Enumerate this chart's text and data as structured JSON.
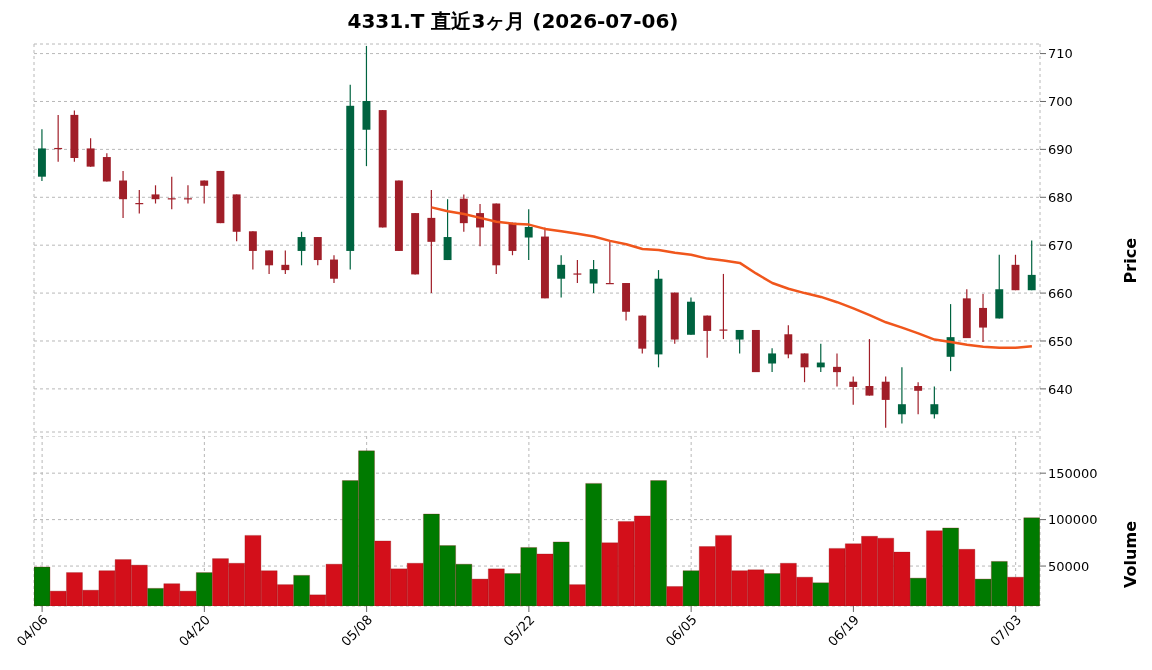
{
  "chart_data": [
    {
      "type": "candlestick",
      "title": "4331.T 直近3ヶ月 (2026-07-06)",
      "ylabel": "Price",
      "categories": [
        null,
        null,
        null,
        null,
        null,
        null,
        null,
        null,
        null,
        null,
        null,
        null,
        null,
        null,
        null,
        null,
        null,
        null,
        null,
        null,
        null,
        null,
        null,
        null,
        null,
        null,
        null,
        null,
        null,
        null,
        null,
        null,
        null,
        null,
        null,
        null,
        null,
        null,
        null,
        null,
        null,
        null,
        null,
        null,
        null,
        null,
        null,
        null,
        null,
        null,
        null,
        null,
        null,
        null,
        null,
        null,
        null,
        null,
        null,
        null,
        null,
        null
      ],
      "ohlc": [
        [
          684.3,
          694.2,
          683.4,
          690.2
        ],
        [
          690.3,
          697.2,
          687.4,
          690.1
        ],
        [
          697.2,
          698.1,
          687.4,
          688.2
        ],
        [
          690.2,
          692.3,
          686.4,
          686.4
        ],
        [
          688.4,
          689.2,
          683.3,
          683.3
        ],
        [
          683.5,
          685.5,
          675.7,
          679.6
        ],
        [
          678.8,
          681.5,
          676.6,
          678.6
        ],
        [
          680.6,
          682.5,
          678.7,
          679.6
        ],
        [
          679.8,
          684.3,
          677.5,
          679.6
        ],
        [
          679.8,
          682.5,
          678.7,
          679.6
        ],
        [
          683.5,
          683.5,
          678.7,
          682.4
        ],
        [
          685.5,
          685.5,
          674.6,
          674.6
        ],
        [
          680.6,
          680.6,
          670.8,
          672.8
        ],
        [
          672.9,
          672.9,
          664.9,
          668.8
        ],
        [
          668.9,
          668.9,
          664.0,
          665.8
        ],
        [
          665.9,
          668.9,
          664.0,
          664.8
        ],
        [
          668.8,
          672.8,
          665.8,
          671.7
        ],
        [
          671.7,
          671.7,
          665.8,
          666.9
        ],
        [
          667.0,
          667.9,
          662.1,
          663.0
        ],
        [
          668.8,
          703.5,
          664.9,
          699.1
        ],
        [
          694.1,
          711.6,
          686.5,
          700.1
        ],
        [
          698.2,
          698.2,
          673.7,
          673.7
        ],
        [
          683.5,
          683.5,
          668.8,
          668.8
        ],
        [
          676.7,
          676.7,
          663.9,
          663.9
        ],
        [
          675.7,
          681.5,
          660.0,
          670.7
        ],
        [
          666.9,
          679.6,
          666.9,
          671.7
        ],
        [
          679.7,
          680.6,
          672.8,
          674.6
        ],
        [
          676.7,
          678.6,
          669.8,
          673.7
        ],
        [
          678.7,
          678.7,
          664.0,
          665.8
        ],
        [
          674.7,
          674.7,
          667.9,
          668.8
        ],
        [
          671.6,
          677.5,
          666.9,
          673.8
        ],
        [
          671.8,
          673.7,
          658.9,
          658.9
        ],
        [
          663.0,
          667.9,
          659.1,
          665.9
        ],
        [
          664.1,
          666.9,
          662.1,
          664.0
        ],
        [
          662.0,
          666.9,
          660.0,
          665.0
        ],
        [
          662.1,
          670.7,
          662.0,
          662.0
        ],
        [
          662.1,
          662.1,
          654.3,
          656.1
        ],
        [
          655.3,
          655.3,
          647.4,
          648.4
        ],
        [
          647.2,
          664.8,
          644.5,
          663.0
        ],
        [
          660.1,
          660.1,
          649.4,
          650.3
        ],
        [
          651.3,
          659.1,
          651.3,
          658.2
        ],
        [
          655.3,
          655.3,
          646.5,
          652.1
        ],
        [
          652.4,
          664.0,
          650.4,
          652.3
        ],
        [
          650.3,
          652.3,
          647.4,
          652.3
        ],
        [
          652.3,
          652.3,
          643.5,
          643.5
        ],
        [
          645.3,
          648.5,
          643.5,
          647.4
        ],
        [
          651.4,
          653.3,
          646.4,
          647.2
        ],
        [
          647.4,
          647.4,
          641.4,
          644.5
        ],
        [
          644.5,
          649.4,
          643.5,
          645.5
        ],
        [
          644.6,
          647.4,
          640.5,
          643.5
        ],
        [
          641.5,
          642.6,
          636.7,
          640.4
        ],
        [
          640.6,
          650.4,
          638.6,
          638.6
        ],
        [
          641.5,
          642.6,
          631.9,
          637.7
        ],
        [
          634.7,
          644.5,
          632.8,
          636.8
        ],
        [
          640.6,
          641.4,
          634.7,
          639.6
        ],
        [
          634.7,
          640.5,
          633.8,
          636.8
        ],
        [
          646.7,
          657.7,
          643.7,
          650.8
        ],
        [
          658.9,
          660.8,
          650.6,
          650.6
        ],
        [
          656.9,
          659.8,
          649.8,
          652.8
        ],
        [
          654.7,
          668.0,
          654.7,
          660.8
        ],
        [
          665.9,
          668.0,
          660.6,
          660.6
        ],
        [
          660.6,
          671.0,
          660.6,
          663.8
        ]
      ],
      "colors": [
        "#006340",
        "#a01e28",
        "#a01e28",
        "#a01e28",
        "#a01e28",
        "#a01e28",
        "#a01e28",
        "#a01e28",
        "#a01e28",
        "#a01e28",
        "#a01e28",
        "#a01e28",
        "#a01e28",
        "#a01e28",
        "#a01e28",
        "#a01e28",
        "#006340",
        "#a01e28",
        "#a01e28",
        "#006340",
        "#006340",
        "#a01e28",
        "#a01e28",
        "#a01e28",
        "#a01e28",
        "#006340",
        "#a01e28",
        "#a01e28",
        "#a01e28",
        "#a01e28",
        "#006340",
        "#a01e28",
        "#006340",
        "#a01e28",
        "#006340",
        "#a01e28",
        "#a01e28",
        "#a01e28",
        "#006340",
        "#a01e28",
        "#006340",
        "#a01e28",
        "#a01e28",
        "#006340",
        "#a01e28",
        "#006340",
        "#a01e28",
        "#a01e28",
        "#006340",
        "#a01e28",
        "#a01e28",
        "#a01e28",
        "#a01e28",
        "#006340",
        "#a01e28",
        "#006340",
        "#006340",
        "#a01e28",
        "#a01e28",
        "#006340",
        "#a01e28",
        "#006340"
      ],
      "series": [
        {
          "type": "line",
          "color": "#f0561c",
          "values": [
            null,
            null,
            null,
            null,
            null,
            null,
            null,
            null,
            null,
            null,
            null,
            null,
            null,
            null,
            null,
            null,
            null,
            null,
            null,
            null,
            null,
            null,
            null,
            null,
            677.9,
            677.1,
            676.5,
            675.7,
            674.9,
            674.5,
            674.3,
            673.4,
            672.9,
            672.4,
            671.8,
            670.9,
            670.2,
            669.2,
            669.0,
            668.4,
            668.0,
            667.2,
            666.8,
            666.3,
            664.1,
            662.1,
            660.9,
            660.0,
            659.2,
            658.1,
            656.8,
            655.4,
            653.9,
            652.8,
            651.6,
            650.3,
            649.8,
            649.2,
            648.8,
            648.6,
            648.6,
            648.9
          ]
        }
      ],
      "ylim": [
        631,
        712
      ],
      "yticks": [
        640,
        650,
        660,
        670,
        680,
        690,
        700,
        710
      ],
      "grid": true,
      "tick_labels": "y"
    },
    {
      "type": "bar",
      "ylabel": "Volume",
      "categories": [
        "04/06",
        null,
        null,
        null,
        null,
        null,
        null,
        null,
        null,
        null,
        "04/20",
        null,
        null,
        null,
        null,
        null,
        null,
        null,
        null,
        null,
        "05/08",
        null,
        null,
        null,
        null,
        null,
        null,
        null,
        null,
        null,
        "05/22",
        null,
        null,
        null,
        null,
        null,
        null,
        null,
        null,
        null,
        "06/05",
        null,
        null,
        null,
        null,
        null,
        null,
        null,
        null,
        null,
        "06/19",
        null,
        null,
        null,
        null,
        null,
        null,
        null,
        null,
        null,
        "07/03",
        null
      ],
      "values": [
        49000,
        23000,
        43000,
        24000,
        45000,
        57000,
        51000,
        26000,
        31000,
        23000,
        43000,
        58000,
        53000,
        83000,
        45000,
        30000,
        40000,
        19000,
        52000,
        142000,
        174000,
        77000,
        47000,
        53000,
        106000,
        72000,
        52000,
        36000,
        47000,
        42000,
        70000,
        63000,
        76000,
        30000,
        139000,
        75000,
        98000,
        104000,
        142000,
        28000,
        45000,
        71000,
        83000,
        45000,
        46000,
        42000,
        53000,
        38000,
        32000,
        69000,
        74000,
        82000,
        80000,
        65000,
        37000,
        88000,
        91000,
        68000,
        36000,
        55000,
        38000,
        102000
      ],
      "colors": [
        "#007a00",
        "#d30f1a",
        "#d30f1a",
        "#d30f1a",
        "#d30f1a",
        "#d30f1a",
        "#d30f1a",
        "#007a00",
        "#d30f1a",
        "#d30f1a",
        "#007a00",
        "#d30f1a",
        "#d30f1a",
        "#d30f1a",
        "#d30f1a",
        "#d30f1a",
        "#007a00",
        "#d30f1a",
        "#d30f1a",
        "#007a00",
        "#007a00",
        "#d30f1a",
        "#d30f1a",
        "#d30f1a",
        "#007a00",
        "#007a00",
        "#007a00",
        "#d30f1a",
        "#d30f1a",
        "#007a00",
        "#007a00",
        "#d30f1a",
        "#007a00",
        "#d30f1a",
        "#007a00",
        "#d30f1a",
        "#d30f1a",
        "#d30f1a",
        "#007a00",
        "#d30f1a",
        "#007a00",
        "#d30f1a",
        "#d30f1a",
        "#d30f1a",
        "#d30f1a",
        "#007a00",
        "#d30f1a",
        "#d30f1a",
        "#007a00",
        "#d30f1a",
        "#d30f1a",
        "#d30f1a",
        "#d30f1a",
        "#d30f1a",
        "#007a00",
        "#d30f1a",
        "#007a00",
        "#d30f1a",
        "#007a00",
        "#007a00",
        "#d30f1a",
        "#007a00"
      ],
      "ylim": [
        7000,
        190000
      ],
      "yticks": [
        50000,
        100000,
        150000
      ],
      "grid": true
    }
  ]
}
